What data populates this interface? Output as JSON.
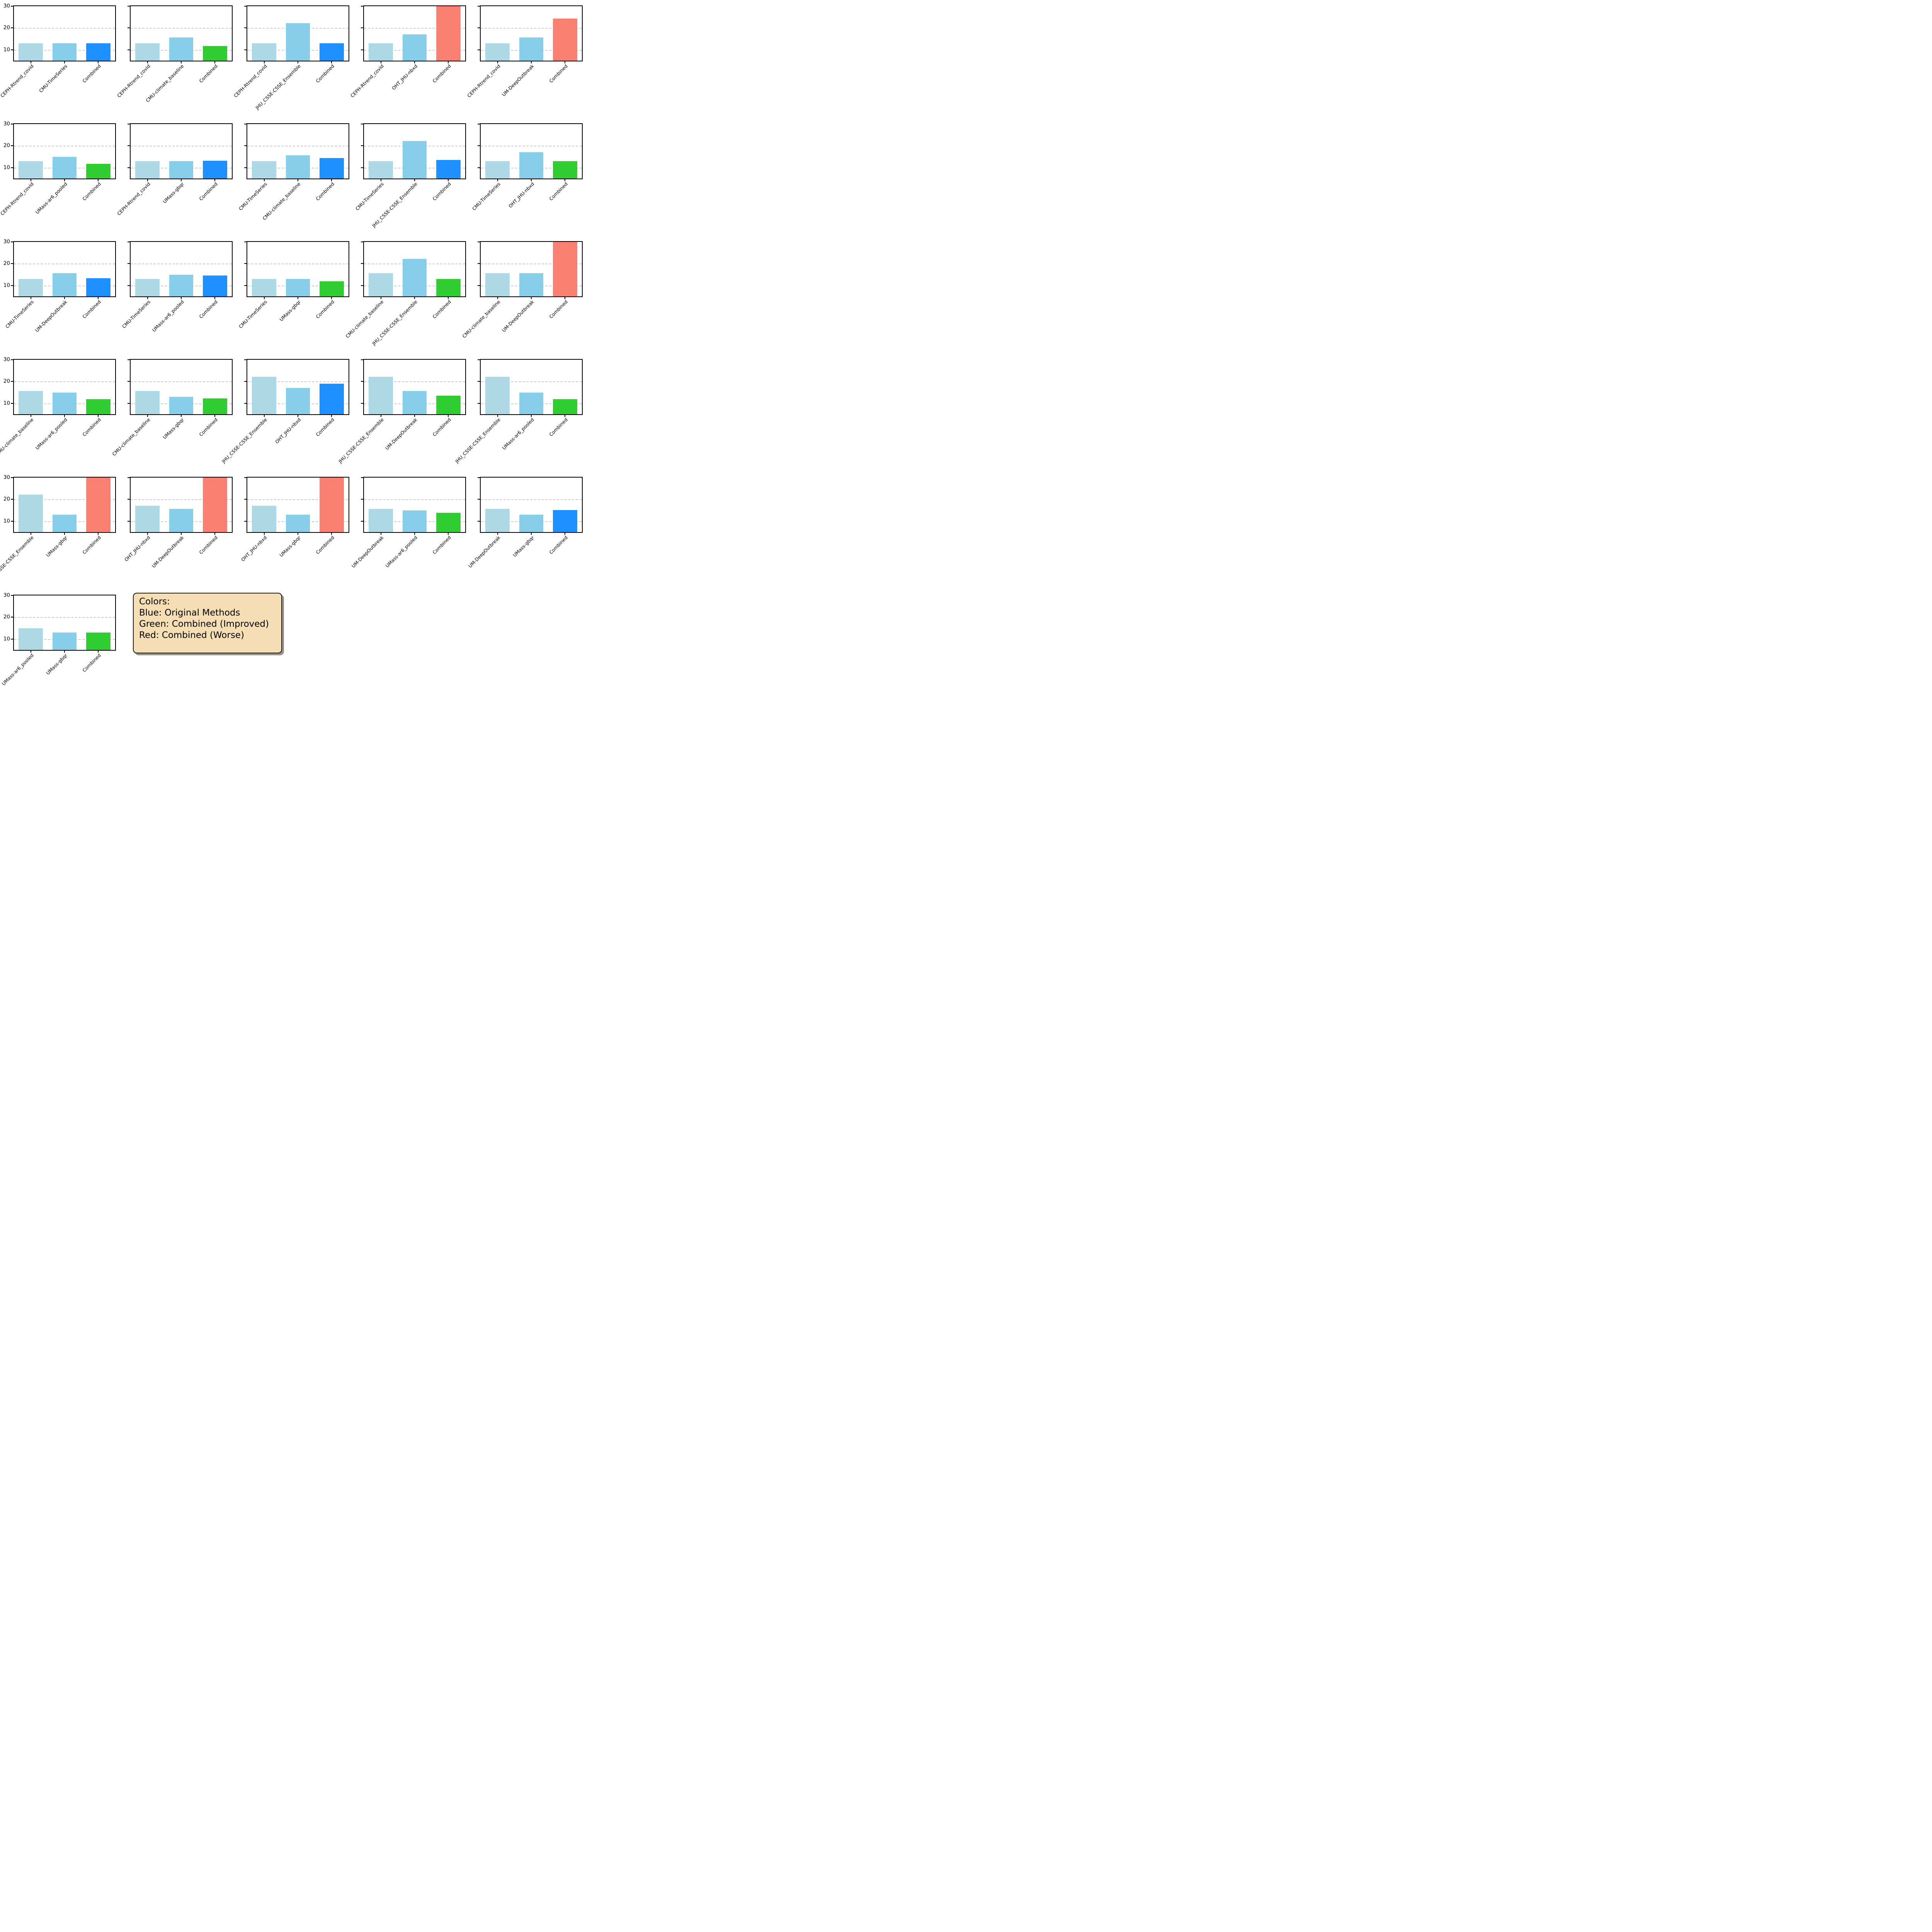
{
  "colors": {
    "method1_bar": "#ADD8E6",
    "method2_bar": "#87CEEB",
    "combined_blue": "#1E90FF",
    "combined_green": "#32CD32",
    "combined_red": "#FA8072",
    "legend_background": "#F5DEB3",
    "gridline": "#c9c9c9",
    "axis": "#000000"
  },
  "legend": {
    "title": "Colors:",
    "lines": [
      "Blue: Original Methods",
      "Green: Combined (Improved)",
      "Red: Combined (Worse)"
    ]
  },
  "chart_data": {
    "type": "bar",
    "title": "",
    "xlabel": "",
    "ylabel": "",
    "ylim": [
      5,
      30
    ],
    "yticks": [
      10,
      20,
      30
    ],
    "grid": "horizontal dashed gridlines at y=10 and y=20",
    "grid_layout": "5 columns x 6 rows of subplots; y tick labels only on first column; legend box below next to last subplot",
    "combined_label": "Combined",
    "bar_order": [
      "method 1 (light blue)",
      "method 2 (sky blue)",
      "Combined (blue/green/red)"
    ],
    "clipped_note": "bars marked combined_clipped exceed the y-axis top (value > 30)",
    "charts": [
      {
        "methods": [
          "CEPH-Rtrend_covid",
          "CMU-TimeSeries"
        ],
        "values": [
          12.9,
          12.9,
          13.0
        ],
        "combined": "blue",
        "combined_clipped": false
      },
      {
        "methods": [
          "CEPH-Rtrend_covid",
          "CMU-climate_baseline"
        ],
        "values": [
          12.9,
          15.6,
          11.7
        ],
        "combined": "green",
        "combined_clipped": false
      },
      {
        "methods": [
          "CEPH-Rtrend_covid",
          "JHU_CSSE-CSSE_Ensemble"
        ],
        "values": [
          12.9,
          22.2,
          13.0
        ],
        "combined": "blue",
        "combined_clipped": false
      },
      {
        "methods": [
          "CEPH-Rtrend_covid",
          "OHT_JHU-nbxd"
        ],
        "values": [
          12.9,
          17.0,
          30.0
        ],
        "combined": "red",
        "combined_clipped": true
      },
      {
        "methods": [
          "CEPH-Rtrend_covid",
          "UM-DeepOutbreak"
        ],
        "values": [
          12.9,
          15.6,
          24.3
        ],
        "combined": "red",
        "combined_clipped": false
      },
      {
        "methods": [
          "CEPH-Rtrend_covid",
          "UMass-ar6_pooled"
        ],
        "values": [
          12.9,
          15.0,
          11.8
        ],
        "combined": "green",
        "combined_clipped": false
      },
      {
        "methods": [
          "CEPH-Rtrend_covid",
          "UMass-gbqr"
        ],
        "values": [
          12.9,
          13.0,
          13.1
        ],
        "combined": "blue",
        "combined_clipped": false
      },
      {
        "methods": [
          "CMU-TimeSeries",
          "CMU-climate_baseline"
        ],
        "values": [
          12.9,
          15.6,
          14.4
        ],
        "combined": "blue",
        "combined_clipped": false
      },
      {
        "methods": [
          "CMU-TimeSeries",
          "JHU_CSSE-CSSE_Ensemble"
        ],
        "values": [
          12.9,
          22.2,
          13.6
        ],
        "combined": "blue",
        "combined_clipped": false
      },
      {
        "methods": [
          "CMU-TimeSeries",
          "OHT_JHU-nbxd"
        ],
        "values": [
          12.9,
          17.0,
          12.9
        ],
        "combined": "green",
        "combined_clipped": false
      },
      {
        "methods": [
          "CMU-TimeSeries",
          "UM-DeepOutbreak"
        ],
        "values": [
          12.9,
          15.6,
          13.4
        ],
        "combined": "blue",
        "combined_clipped": false
      },
      {
        "methods": [
          "CMU-TimeSeries",
          "UMass-ar6_pooled"
        ],
        "values": [
          12.9,
          15.0,
          14.5
        ],
        "combined": "blue",
        "combined_clipped": false
      },
      {
        "methods": [
          "CMU-TimeSeries",
          "UMass-gbqr"
        ],
        "values": [
          12.9,
          13.0,
          11.9
        ],
        "combined": "green",
        "combined_clipped": false
      },
      {
        "methods": [
          "CMU-climate_baseline",
          "JHU_CSSE-CSSE_Ensemble"
        ],
        "values": [
          15.6,
          22.2,
          12.9
        ],
        "combined": "green",
        "combined_clipped": false
      },
      {
        "methods": [
          "CMU-climate_baseline",
          "UM-DeepOutbreak"
        ],
        "values": [
          15.6,
          15.6,
          30.0
        ],
        "combined": "red",
        "combined_clipped": true
      },
      {
        "methods": [
          "CMU-climate_baseline",
          "UMass-ar6_pooled"
        ],
        "values": [
          15.6,
          15.0,
          11.9
        ],
        "combined": "green",
        "combined_clipped": false
      },
      {
        "methods": [
          "CMU-climate_baseline",
          "UMass-gbqr"
        ],
        "values": [
          15.6,
          13.0,
          12.2
        ],
        "combined": "green",
        "combined_clipped": false
      },
      {
        "methods": [
          "JHU_CSSE-CSSE_Ensemble",
          "OHT_JHU-nbxd"
        ],
        "values": [
          22.2,
          17.0,
          19.0
        ],
        "combined": "blue",
        "combined_clipped": false
      },
      {
        "methods": [
          "JHU_CSSE-CSSE_Ensemble",
          "UM-DeepOutbreak"
        ],
        "values": [
          22.2,
          15.6,
          13.6
        ],
        "combined": "green",
        "combined_clipped": false
      },
      {
        "methods": [
          "JHU_CSSE-CSSE_Ensemble",
          "UMass-ar6_pooled"
        ],
        "values": [
          22.2,
          15.0,
          12.0
        ],
        "combined": "green",
        "combined_clipped": false
      },
      {
        "methods": [
          "JHU_CSSE-CSSE_Ensemble",
          "UMass-gbqr"
        ],
        "values": [
          22.2,
          13.0,
          30.0
        ],
        "combined": "red",
        "combined_clipped": true
      },
      {
        "methods": [
          "OHT_JHU-nbxd",
          "UM-DeepOutbreak"
        ],
        "values": [
          17.0,
          15.6,
          30.0
        ],
        "combined": "red",
        "combined_clipped": true
      },
      {
        "methods": [
          "OHT_JHU-nbxd",
          "UMass-gbqr"
        ],
        "values": [
          17.0,
          13.0,
          30.0
        ],
        "combined": "red",
        "combined_clipped": true
      },
      {
        "methods": [
          "UM-DeepOutbreak",
          "UMass-ar6_pooled"
        ],
        "values": [
          15.6,
          15.0,
          13.8
        ],
        "combined": "green",
        "combined_clipped": false
      },
      {
        "methods": [
          "UM-DeepOutbreak",
          "UMass-gbqr"
        ],
        "values": [
          15.6,
          13.0,
          15.1
        ],
        "combined": "blue",
        "combined_clipped": false
      },
      {
        "methods": [
          "UMass-ar6_pooled",
          "UMass-gbqr"
        ],
        "values": [
          15.0,
          13.0,
          12.9
        ],
        "combined": "green",
        "combined_clipped": false
      }
    ]
  }
}
